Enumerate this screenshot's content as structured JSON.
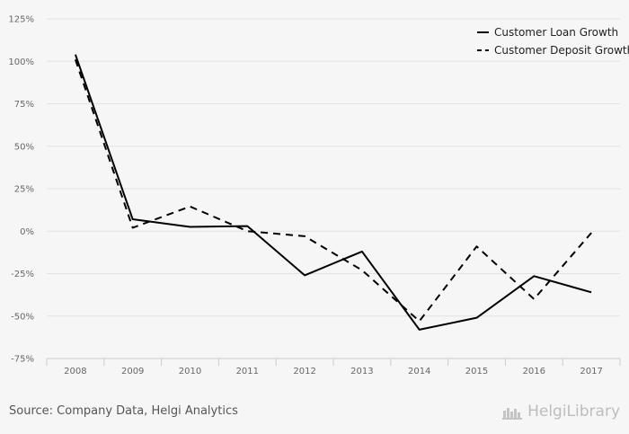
{
  "chart_data": {
    "type": "line",
    "categories": [
      "2008",
      "2009",
      "2010",
      "2011",
      "2012",
      "2013",
      "2014",
      "2015",
      "2016",
      "2017"
    ],
    "series": [
      {
        "name": "Customer Loan Growth",
        "style": "solid",
        "color": "#000000",
        "values": [
          104,
          7,
          2.5,
          3,
          -26,
          -12,
          -58,
          -51,
          -26.5,
          -36
        ]
      },
      {
        "name": "Customer Deposit Growth",
        "style": "dashed",
        "color": "#000000",
        "values": [
          101,
          2,
          14.5,
          0,
          -3,
          -23,
          -53,
          -9,
          -40,
          -1
        ]
      }
    ],
    "y_ticks": [
      "125%",
      "100%",
      "75%",
      "50%",
      "25%",
      "0%",
      "-25%",
      "-50%",
      "-75%"
    ],
    "ylim": [
      -75,
      125
    ],
    "grid": true,
    "legend_position": "top-right",
    "title": "",
    "xlabel": "",
    "ylabel": ""
  },
  "footer": {
    "source": "Source: Company Data, Helgi Analytics",
    "brand": "HelgiLibrary"
  },
  "colors": {
    "background": "#f6f6f6",
    "grid": "#e2e2e2",
    "axis": "#cccccc"
  }
}
